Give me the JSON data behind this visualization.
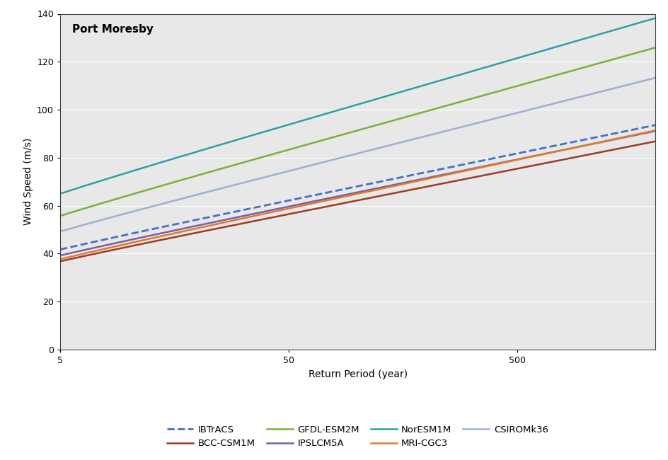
{
  "title": "Port Moresby",
  "xlabel": "Return Period (year)",
  "ylabel": "Wind Speed (m/s)",
  "xlim_log": [
    5,
    2000
  ],
  "ylim": [
    0,
    140
  ],
  "yticks": [
    0,
    20,
    40,
    60,
    80,
    100,
    120,
    140
  ],
  "background_color": "#e8e8e8",
  "series": [
    {
      "label": "IBTrACS",
      "color": "#4472c4",
      "linestyle": "dashed",
      "linewidth": 2.0,
      "u": 29.0,
      "alpha": 8.5
    },
    {
      "label": "BCC-CSM1M",
      "color": "#9e3a26",
      "linestyle": "solid",
      "linewidth": 1.8,
      "u": 24.5,
      "alpha": 8.2
    },
    {
      "label": "GFDL-ESM2M",
      "color": "#7daf3a",
      "linestyle": "solid",
      "linewidth": 1.8,
      "u": 38.5,
      "alpha": 11.5
    },
    {
      "label": "IPSLCM5A",
      "color": "#7b5ea7",
      "linestyle": "solid",
      "linewidth": 1.8,
      "u": 26.5,
      "alpha": 8.5
    },
    {
      "label": "NorESM1M",
      "color": "#2e9ea8",
      "linestyle": "solid",
      "linewidth": 1.8,
      "u": 47.0,
      "alpha": 12.0
    },
    {
      "label": "MRI-CGC3",
      "color": "#e07b2a",
      "linestyle": "solid",
      "linewidth": 1.8,
      "u": 24.5,
      "alpha": 8.8
    },
    {
      "label": "CSIROMk36",
      "color": "#a0aed4",
      "linestyle": "solid",
      "linewidth": 1.8,
      "u": 33.5,
      "alpha": 10.5
    }
  ],
  "legend_order": [
    "IBTrACS",
    "BCC-CSM1M",
    "GFDL-ESM2M",
    "IPSLCM5A",
    "NorESM1M",
    "MRI-CGC3",
    "CSIROMk36"
  ]
}
